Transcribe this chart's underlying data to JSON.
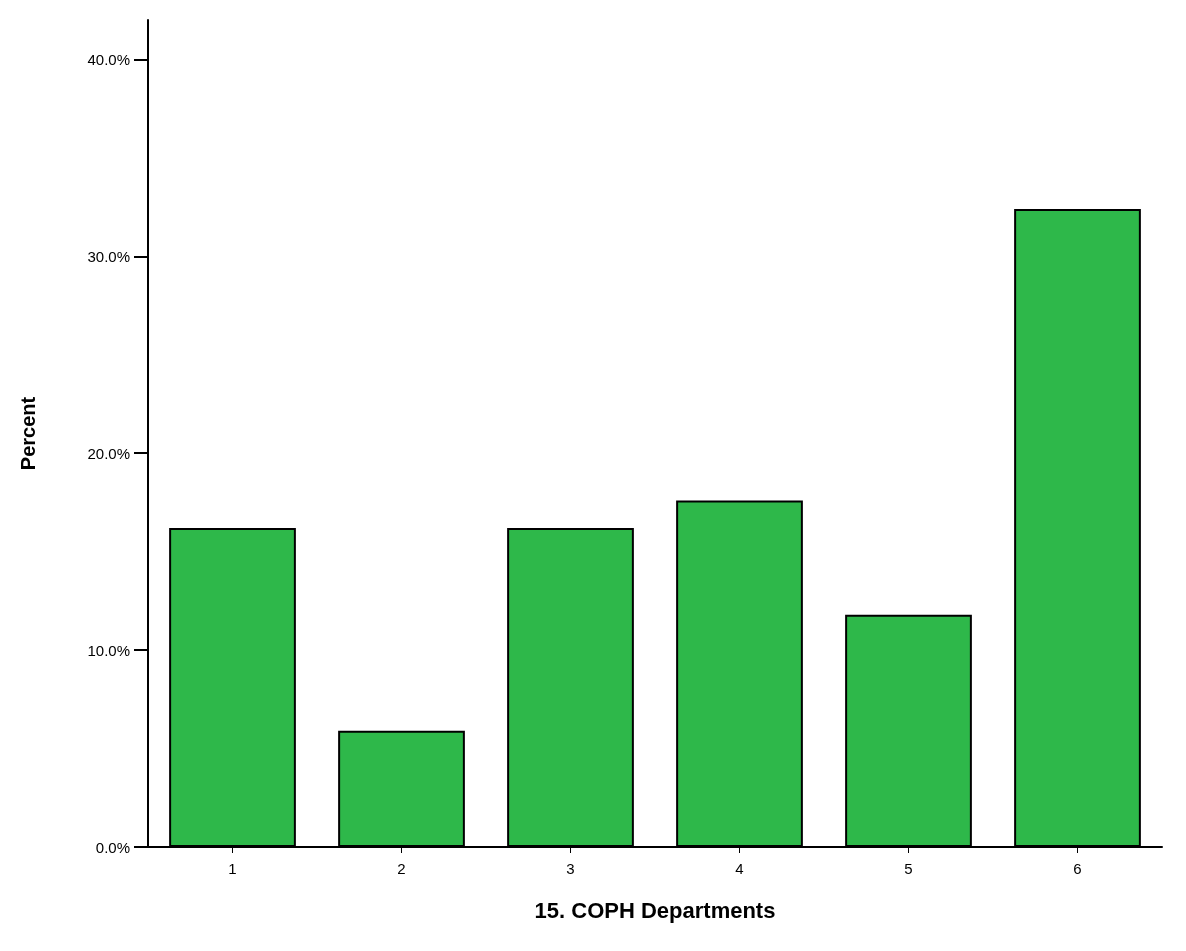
{
  "chart_data": {
    "type": "bar",
    "xlabel": "15. COPH Departments",
    "ylabel": "Percent",
    "categories": [
      "1",
      "2",
      "3",
      "4",
      "5",
      "6"
    ],
    "values": [
      16.2,
      5.9,
      16.2,
      17.6,
      11.8,
      32.4
    ],
    "color": "#2eb84a",
    "ylim": [
      0,
      42
    ],
    "yticks": [
      {
        "value": 0,
        "label": "0.0%"
      },
      {
        "value": 10,
        "label": "10.0%"
      },
      {
        "value": 20,
        "label": "20.0%"
      },
      {
        "value": 30,
        "label": "30.0%"
      },
      {
        "value": 40,
        "label": "40.0%"
      }
    ],
    "grid": false
  }
}
